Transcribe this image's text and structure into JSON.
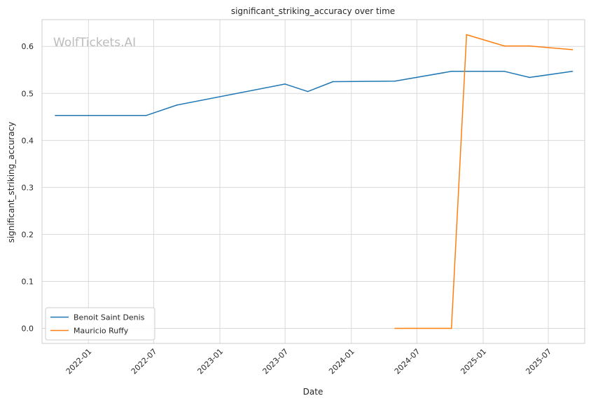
{
  "chart_data": {
    "type": "line",
    "title": "significant_striking_accuracy over time",
    "xlabel": "Date",
    "ylabel": "significant_striking_accuracy",
    "watermark": "WolfTickets.AI",
    "grid": true,
    "legend_position": "lower-left",
    "xlim": [
      "2021-08-25",
      "2025-10-10"
    ],
    "ylim": [
      -0.032,
      0.657
    ],
    "x_ticks": [
      "2022-01-01",
      "2022-07-01",
      "2023-01-01",
      "2023-07-01",
      "2024-01-01",
      "2024-07-01",
      "2025-01-01",
      "2025-07-01"
    ],
    "x_tick_labels": [
      "2022-01",
      "2022-07",
      "2023-01",
      "2023-07",
      "2024-01",
      "2024-07",
      "2025-01",
      "2025-07"
    ],
    "y_ticks": [
      0.0,
      0.1,
      0.2,
      0.3,
      0.4,
      0.5,
      0.6
    ],
    "y_tick_labels": [
      "0.0",
      "0.1",
      "0.2",
      "0.3",
      "0.4",
      "0.5",
      "0.6"
    ],
    "series": [
      {
        "name": "Benoit Saint Denis",
        "color": "#1f77b4",
        "points": [
          {
            "x": "2021-10-01",
            "y": 0.453
          },
          {
            "x": "2022-06-10",
            "y": 0.453
          },
          {
            "x": "2022-09-03",
            "y": 0.475
          },
          {
            "x": "2023-07-01",
            "y": 0.52
          },
          {
            "x": "2023-09-02",
            "y": 0.504
          },
          {
            "x": "2023-11-11",
            "y": 0.525
          },
          {
            "x": "2024-05-01",
            "y": 0.526
          },
          {
            "x": "2024-10-05",
            "y": 0.547
          },
          {
            "x": "2025-03-01",
            "y": 0.547
          },
          {
            "x": "2025-05-10",
            "y": 0.534
          },
          {
            "x": "2025-09-06",
            "y": 0.547
          }
        ]
      },
      {
        "name": "Mauricio Ruffy",
        "color": "#ff7f0e",
        "points": [
          {
            "x": "2024-05-01",
            "y": 0.0
          },
          {
            "x": "2024-10-05",
            "y": 0.0
          },
          {
            "x": "2024-11-16",
            "y": 0.625
          },
          {
            "x": "2025-03-01",
            "y": 0.601
          },
          {
            "x": "2025-05-10",
            "y": 0.601
          },
          {
            "x": "2025-09-06",
            "y": 0.593
          }
        ]
      }
    ]
  }
}
